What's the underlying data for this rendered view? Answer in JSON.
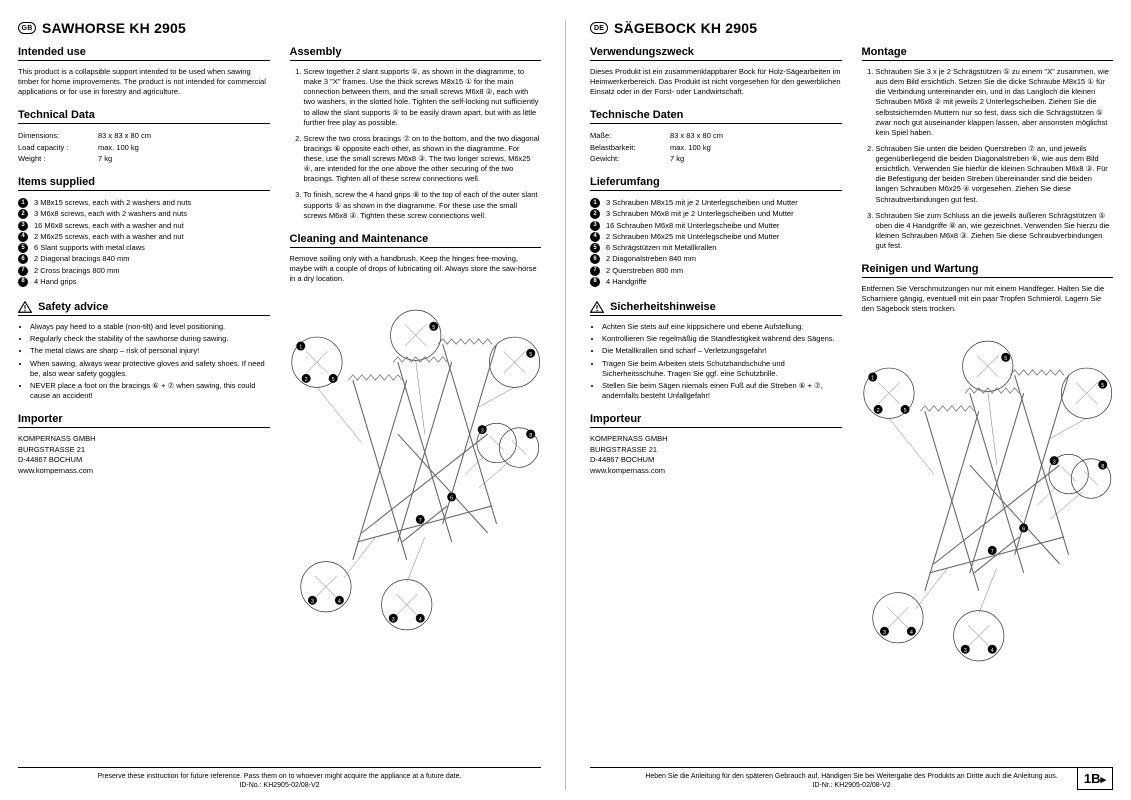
{
  "left": {
    "lang_code": "GB",
    "title": "SAWHORSE KH 2905",
    "intended_use": {
      "heading": "Intended use",
      "text": "This product is a collapsible support intended to be used when sawing timber for home improvements. The product is not intended for commercial applications or for use in forestry and agriculture."
    },
    "technical": {
      "heading": "Technical Data",
      "rows": [
        {
          "label": "Dimensions:",
          "value": "83 x 83 x 80 cm"
        },
        {
          "label": "Load capacity :",
          "value": "max. 100 kg"
        },
        {
          "label": "Weight :",
          "value": "7 kg"
        }
      ]
    },
    "items": {
      "heading": "Items supplied",
      "list": [
        "3 M8x15 screws, each with 2 washers and nuts",
        "3 M6x8 screws, each with 2 washers and nuts",
        "16 M6x8 screws, each with a washer and nut",
        "2 M6x25 screws, each with a washer and nut",
        "6 Slant supports with metal claws",
        "2 Diagonal bracings 840 mm",
        "2 Cross bracings 800 mm",
        "4 Hand grips"
      ]
    },
    "assembly": {
      "heading": "Assembly",
      "steps": [
        "Screw together 2 slant supports ⑤, as shown in the diagramme, to make 3 \"X\" frames. Use the thick screws M8x15 ① for the main connection between them, and the small screws M6x8 ②, each with two washers, in the slotted hole. Tighten the self-locking nut sufficiently to allow the slant supports ⑤ to be easily drawn apart, but with as little further free play as possible.",
        "Screw the two cross bracings ⑦ on to the bottom, and the two diagonal bracings ⑥ opposite each other, as shown in the diagramme. For these, use the small screws M6x8 ③. The two longer screws, M6x25 ④, are intended for the one above the other securing of the two bracings. Tighten all of these screw connections well.",
        "To finish, screw the 4 hand grips ⑧ to the top of each of the outer slant supports ⑤ as shown in the diagramme. For these use the small screws M6x8 ③. Tighten these screw connections well."
      ]
    },
    "cleaning": {
      "heading": "Cleaning and Maintenance",
      "text": "Remove soiling only with a handbrush. Keep the hinges free-moving, maybe with a couple of drops of lubricating oil. Always store the saw-horse in a dry location."
    },
    "safety": {
      "heading": "Safety advice",
      "bullets": [
        "Always pay heed to a stable (non-tilt) and level positioning.",
        "Regularly check the stability of the sawhorse during sawing.",
        "The metal claws are sharp – risk of personal injury!",
        "When sawing, always wear protective gloves and safety shoes. If need be, also wear safety goggles.",
        "NEVER place a foot on the bracings ⑥ + ⑦ when sawing, this could cause an accident!"
      ]
    },
    "importer": {
      "heading": "Importer",
      "lines": [
        "KOMPERNASS GMBH",
        "BURGSTRASSE 21",
        "D-44867 BOCHUM",
        "www.kompernass.com"
      ]
    },
    "footer1": "Preserve these instruction for future reference. Pass them on to whoever might acquire the appliance at a future date.",
    "footer2": "ID-No.: KH2905-02/08-V2"
  },
  "right": {
    "lang_code": "DE",
    "title": "SÄGEBOCK KH 2905",
    "intended_use": {
      "heading": "Verwendungszweck",
      "text": "Dieses Produkt ist ein zusammenklappbarer Bock für Holz-Sägearbeiten im Heimwerkerbereich. Das Produkt ist nicht vorgesehen für den gewerblichen Einsatz oder in der Forst- oder Landwirtschaft."
    },
    "technical": {
      "heading": "Technische Daten",
      "rows": [
        {
          "label": "Maße:",
          "value": "83 x 83 x 80 cm"
        },
        {
          "label": "Belastbarkeit:",
          "value": "max. 100 kg"
        },
        {
          "label": "Gewicht:",
          "value": "7 kg"
        }
      ]
    },
    "items": {
      "heading": "Lieferumfang",
      "list": [
        "3 Schrauben M8x15 mit je 2 Unterlegscheiben und Mutter",
        "3 Schrauben M6x8 mit je 2 Unterlegscheiben und Mutter",
        "16 Schrauben M6x8 mit Unterlegscheibe und Mutter",
        "2 Schrauben M6x25 mit Unterlegscheibe und Mutter",
        "6 Schrägstützen mit Metallkrallen",
        "2 Diagonalstreben 840 mm",
        "2 Querstreben 800 mm",
        "4 Handgriffe"
      ]
    },
    "assembly": {
      "heading": "Montage",
      "steps": [
        "Schrauben Sie 3 x je 2 Schrägstützen ⑤ zu einem \"X\" zusammen, wie aus dem Bild ersichtlich. Setzen Sie die dicke Schraube M8x15 ① für die Verbindung untereinander ein, und in das Langloch die kleinen Schrauben M6x8 ② mit jeweils 2 Unterlegscheiben. Ziehen Sie die selbstsichernden Muttern nur so fest, dass sich die Schrägstützen ⑤ zwar noch gut auseinander klappen lassen, aber ansonsten möglichst kein Spiel haben.",
        "Schrauben Sie unten die beiden Querstreben ⑦ an, und jeweils gegenüberliegend die beiden Diagonalstreben ⑥, wie aus dem Bild ersichtlich. Verwenden Sie hierfür die kleinen Schrauben M6x8 ③. Für die Befestigung der beiden Streben übereinander sind die beiden langen Schrauben M6x25 ④ vorgesehen. Ziehen Sie diese Schraubverbindungen gut fest.",
        "Schrauben Sie zum Schluss an die jeweils äußeren Schrägstützen ⑤ oben die 4 Handgriffe ⑧ an, wie gezeichnet. Verwenden Sie hierzu die kleinen Schrauben M6x8 ③. Ziehen Sie diese Schraubverbindungen gut fest."
      ]
    },
    "cleaning": {
      "heading": "Reinigen und Wartung",
      "text": "Entfernen Sie Verschmutzungen nur mit einem Handfeger. Halten Sie die Scharniere gängig, eventuell mit ein paar Tropfen Schmieröl. Lagern Sie den Sägebock stets trocken."
    },
    "safety": {
      "heading": "Sicherheitshinweise",
      "bullets": [
        "Achten Sie stets auf eine kippsichere und ebene Aufstellung.",
        "Kontrollieren Sie regelmäßig die Standfestigkeit während des Sägens.",
        "Die Metallkrallen sind scharf – Verletzungsgefahr!",
        "Tragen Sie beim Arbeiten stets Schutzhandschuhe und Sicherheitsschuhe. Tragen Sie ggf. eine Schutzbrille.",
        "Stellen Sie beim Sägen niemals einen Fuß auf die Streben ⑥ + ⑦, andernfalls besteht Unfallgefahr!"
      ]
    },
    "importer": {
      "heading": "Importeur",
      "lines": [
        "KOMPERNASS GMBH",
        "BURGSTRASSE 21",
        "D-44867 BOCHUM",
        "www.kompernass.com"
      ]
    },
    "footer1": "Heben Sie die Anleitung für den späteren Gebrauch auf. Händigen Sie bei Weitergabe des Produkts an Dritte auch die Anleitung aus.",
    "footer2": "ID-Nr.: KH2905-02/08-V2",
    "page_number": "1B"
  },
  "diagram": {
    "callouts": [
      "1",
      "2",
      "5",
      "5",
      "8",
      "3",
      "4",
      "6",
      "7",
      "3",
      "4"
    ],
    "stroke": "#666666",
    "stroke_light": "#999999",
    "circle_stroke": "#333333"
  }
}
